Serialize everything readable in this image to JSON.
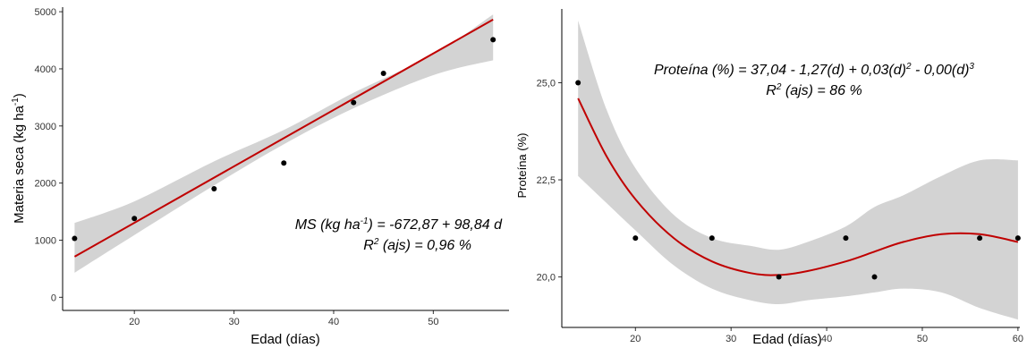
{
  "colors": {
    "band": "#d3d3d3",
    "line": "#c00000",
    "point": "#000000",
    "axis": "#000000"
  },
  "chart_data": [
    {
      "type": "scatter",
      "xlabel": "Edad (días)",
      "ylabel_main": "Materia seca (kg ha",
      "ylabel_sup": "-1",
      "ylabel_tail": ")",
      "xlim": [
        12.8,
        57.6
      ],
      "ylim": [
        -230,
        5080
      ],
      "xticks": [
        20,
        30,
        40,
        50
      ],
      "xtick_labels": [
        "20",
        "30",
        "40",
        "50"
      ],
      "yticks": [
        0,
        1000,
        2000,
        3000,
        4000,
        5000
      ],
      "ytick_labels": [
        "0",
        "1000",
        "2000",
        "3000",
        "4000",
        "5000"
      ],
      "points": [
        {
          "x": 14,
          "y": 1030
        },
        {
          "x": 20,
          "y": 1380
        },
        {
          "x": 28,
          "y": 1900
        },
        {
          "x": 35,
          "y": 2350
        },
        {
          "x": 42,
          "y": 3410
        },
        {
          "x": 45,
          "y": 3920
        },
        {
          "x": 56,
          "y": 4510
        }
      ],
      "fit": {
        "model": "linear",
        "intercept": -672.87,
        "slope": 98.84,
        "x_range": [
          14,
          56
        ]
      },
      "confidence_band": {
        "x": [
          14,
          20,
          28,
          35,
          42,
          50,
          56
        ],
        "lower": [
          430,
          1090,
          1960,
          2680,
          3310,
          3890,
          4150
        ],
        "upper": [
          1300,
          1680,
          2380,
          2930,
          3580,
          4250,
          4950
        ]
      },
      "annotation_line1": "MS (kg ha",
      "annotation_line1_sup": "-1",
      "annotation_line1_tail": ") = -672,87 + 98,84 d",
      "annotation_line2": "R",
      "annotation_line2_sup": "2",
      "annotation_line2_tail": " (ajs) = 0,96 %",
      "grid": false
    },
    {
      "type": "scatter",
      "xlabel": "Edad (días)",
      "ylabel": "Proteína (%)",
      "xlim": [
        12.3,
        60.2
      ],
      "ylim": [
        18.7,
        26.9
      ],
      "xticks": [
        20,
        30,
        40,
        50,
        60
      ],
      "xtick_labels": [
        "20",
        "30",
        "40",
        "50",
        "60"
      ],
      "yticks": [
        20,
        22.5,
        25
      ],
      "ytick_labels": [
        "20,0",
        "22,5",
        "25,0"
      ],
      "points": [
        {
          "x": 14,
          "y": 25.0
        },
        {
          "x": 20,
          "y": 21.0
        },
        {
          "x": 28,
          "y": 21.0
        },
        {
          "x": 35,
          "y": 20.0
        },
        {
          "x": 42,
          "y": 21.0
        },
        {
          "x": 45,
          "y": 20.0
        },
        {
          "x": 56,
          "y": 21.0
        },
        {
          "x": 60,
          "y": 21.0
        }
      ],
      "fit": {
        "model": "cubic",
        "x": [
          14,
          17,
          20,
          24,
          28,
          32,
          35,
          38,
          42,
          45,
          48,
          52,
          56,
          60
        ],
        "y": [
          24.6,
          23.1,
          22.0,
          21.0,
          20.4,
          20.1,
          20.05,
          20.15,
          20.4,
          20.65,
          20.9,
          21.1,
          21.1,
          20.9
        ]
      },
      "confidence_band": {
        "x": [
          14,
          17,
          20,
          24,
          28,
          32,
          35,
          38,
          42,
          45,
          48,
          52,
          56,
          60
        ],
        "lower": [
          22.6,
          21.9,
          21.2,
          20.3,
          19.7,
          19.4,
          19.3,
          19.4,
          19.5,
          19.6,
          19.7,
          19.6,
          19.2,
          18.9
        ],
        "upper": [
          26.6,
          24.3,
          22.8,
          21.6,
          21.0,
          20.8,
          20.7,
          20.9,
          21.3,
          21.8,
          22.1,
          22.6,
          23.0,
          23.0
        ]
      },
      "annotation_line1": "Proteína (%) = 37,04 - 1,27(d) + 0,03(d)",
      "annotation_line1_sup": "2",
      "annotation_line1_mid": " - 0,00(d)",
      "annotation_line1_sup2": "3",
      "annotation_line2": "R",
      "annotation_line2_sup": "2",
      "annotation_line2_tail": " (ajs) = 86 %",
      "grid": false
    }
  ]
}
